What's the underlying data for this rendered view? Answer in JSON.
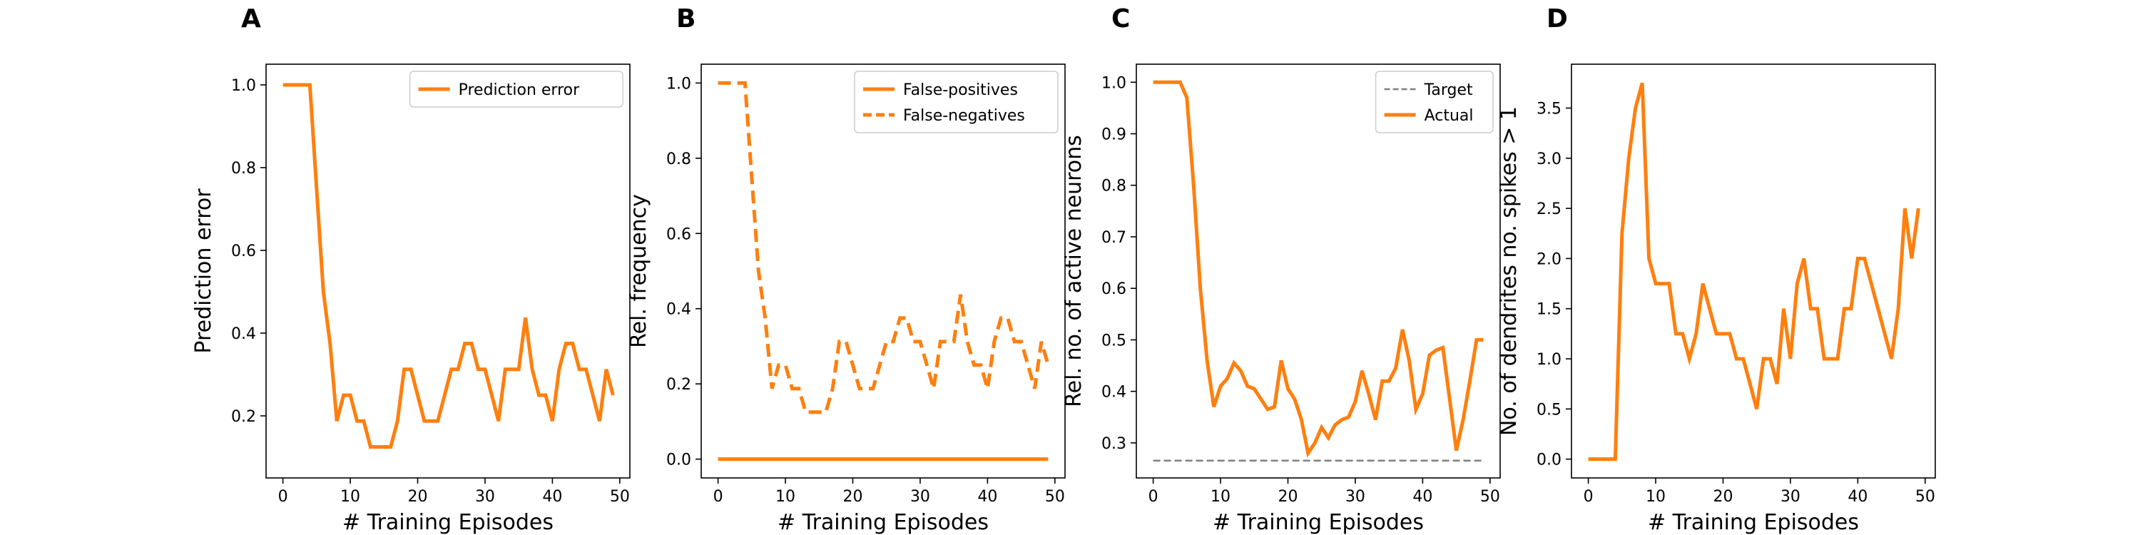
{
  "chart_data": [
    {
      "panel": "A",
      "type": "line",
      "xlabel": "# Training Episodes",
      "ylabel": "Prediction error",
      "xlim": [
        -2.5,
        51.5
      ],
      "ylim": [
        0.05,
        1.05
      ],
      "xticks": [
        0,
        10,
        20,
        30,
        40,
        50
      ],
      "yticks": [
        0.2,
        0.4,
        0.6,
        0.8,
        1.0
      ],
      "ytick_decimals": 1,
      "legend_position": "top-right",
      "series": [
        {
          "name": "Prediction error",
          "style": "solid",
          "color": "#ff7f0e",
          "x": [
            0,
            1,
            2,
            3,
            4,
            5,
            6,
            7,
            8,
            9,
            10,
            11,
            12,
            13,
            14,
            15,
            16,
            17,
            18,
            19,
            20,
            21,
            22,
            23,
            24,
            25,
            26,
            27,
            28,
            29,
            30,
            31,
            32,
            33,
            34,
            35,
            36,
            37,
            38,
            39,
            40,
            41,
            42,
            43,
            44,
            45,
            46,
            47,
            48,
            49
          ],
          "y": [
            1.0,
            1.0,
            1.0,
            1.0,
            1.0,
            0.75,
            0.5,
            0.375,
            0.1875,
            0.25,
            0.25,
            0.1875,
            0.1875,
            0.125,
            0.125,
            0.125,
            0.125,
            0.1875,
            0.3125,
            0.3125,
            0.25,
            0.1875,
            0.1875,
            0.1875,
            0.25,
            0.3125,
            0.3125,
            0.375,
            0.375,
            0.3125,
            0.3125,
            0.25,
            0.1875,
            0.3125,
            0.3125,
            0.3125,
            0.4375,
            0.3125,
            0.25,
            0.25,
            0.1875,
            0.3125,
            0.375,
            0.375,
            0.3125,
            0.3125,
            0.25,
            0.1875,
            0.3125,
            0.25
          ]
        }
      ]
    },
    {
      "panel": "B",
      "type": "line",
      "xlabel": "# Training Episodes",
      "ylabel": "Rel. frequency",
      "xlim": [
        -2.5,
        51.5
      ],
      "ylim": [
        -0.05,
        1.05
      ],
      "xticks": [
        0,
        10,
        20,
        30,
        40,
        50
      ],
      "yticks": [
        0.0,
        0.2,
        0.4,
        0.6,
        0.8,
        1.0
      ],
      "ytick_decimals": 1,
      "legend_position": "top-right",
      "series": [
        {
          "name": "False-positives",
          "style": "solid",
          "color": "#ff7f0e",
          "x": [
            0,
            1,
            2,
            3,
            4,
            5,
            6,
            7,
            8,
            9,
            10,
            11,
            12,
            13,
            14,
            15,
            16,
            17,
            18,
            19,
            20,
            21,
            22,
            23,
            24,
            25,
            26,
            27,
            28,
            29,
            30,
            31,
            32,
            33,
            34,
            35,
            36,
            37,
            38,
            39,
            40,
            41,
            42,
            43,
            44,
            45,
            46,
            47,
            48,
            49
          ],
          "y": [
            0,
            0,
            0,
            0,
            0,
            0,
            0,
            0,
            0,
            0,
            0,
            0,
            0,
            0,
            0,
            0,
            0,
            0,
            0,
            0,
            0,
            0,
            0,
            0,
            0,
            0,
            0,
            0,
            0,
            0,
            0,
            0,
            0,
            0,
            0,
            0,
            0,
            0,
            0,
            0,
            0,
            0,
            0,
            0,
            0,
            0,
            0,
            0,
            0,
            0
          ]
        },
        {
          "name": "False-negatives",
          "style": "dashed",
          "color": "#ff7f0e",
          "x": [
            0,
            1,
            2,
            3,
            4,
            5,
            6,
            7,
            8,
            9,
            10,
            11,
            12,
            13,
            14,
            15,
            16,
            17,
            18,
            19,
            20,
            21,
            22,
            23,
            24,
            25,
            26,
            27,
            28,
            29,
            30,
            31,
            32,
            33,
            34,
            35,
            36,
            37,
            38,
            39,
            40,
            41,
            42,
            43,
            44,
            45,
            46,
            47,
            48,
            49
          ],
          "y": [
            1.0,
            1.0,
            1.0,
            1.0,
            1.0,
            0.75,
            0.5,
            0.375,
            0.1875,
            0.25,
            0.25,
            0.1875,
            0.1875,
            0.125,
            0.125,
            0.125,
            0.125,
            0.1875,
            0.3125,
            0.3125,
            0.25,
            0.1875,
            0.1875,
            0.1875,
            0.25,
            0.3125,
            0.3125,
            0.375,
            0.375,
            0.3125,
            0.3125,
            0.25,
            0.1875,
            0.3125,
            0.3125,
            0.3125,
            0.4375,
            0.3125,
            0.25,
            0.25,
            0.1875,
            0.3125,
            0.375,
            0.375,
            0.3125,
            0.3125,
            0.25,
            0.1875,
            0.3125,
            0.25
          ]
        }
      ]
    },
    {
      "panel": "C",
      "type": "line",
      "xlabel": "# Training Episodes",
      "ylabel": "Rel. no. of active neurons",
      "xlim": [
        -2.5,
        51.5
      ],
      "ylim": [
        0.232,
        1.035
      ],
      "xticks": [
        0,
        10,
        20,
        30,
        40,
        50
      ],
      "yticks": [
        0.3,
        0.4,
        0.5,
        0.6,
        0.7,
        0.8,
        0.9,
        1.0
      ],
      "ytick_decimals": 1,
      "legend_position": "top-right",
      "series": [
        {
          "name": "Target",
          "style": "dashed-thin",
          "color": "#808080",
          "x": [
            0,
            49
          ],
          "y": [
            0.2656,
            0.2656
          ]
        },
        {
          "name": "Actual",
          "style": "solid",
          "color": "#ff7f0e",
          "x": [
            0,
            1,
            2,
            3,
            4,
            5,
            6,
            7,
            8,
            9,
            10,
            11,
            12,
            13,
            14,
            15,
            16,
            17,
            18,
            19,
            20,
            21,
            22,
            23,
            24,
            25,
            26,
            27,
            28,
            29,
            30,
            31,
            32,
            33,
            34,
            35,
            36,
            37,
            38,
            39,
            40,
            41,
            42,
            43,
            44,
            45,
            46,
            47,
            48,
            49
          ],
          "y": [
            1.0,
            1.0,
            1.0,
            1.0,
            1.0,
            0.97,
            0.8,
            0.6,
            0.46,
            0.37,
            0.41,
            0.425,
            0.455,
            0.44,
            0.41,
            0.405,
            0.385,
            0.365,
            0.37,
            0.46,
            0.405,
            0.385,
            0.345,
            0.28,
            0.3,
            0.33,
            0.31,
            0.335,
            0.345,
            0.35,
            0.38,
            0.44,
            0.395,
            0.345,
            0.42,
            0.42,
            0.445,
            0.52,
            0.46,
            0.365,
            0.395,
            0.47,
            0.48,
            0.485,
            0.385,
            0.285,
            0.345,
            0.42,
            0.5,
            0.5
          ]
        }
      ]
    },
    {
      "panel": "D",
      "type": "line",
      "xlabel": "# Training Episodes",
      "ylabel": "No. of dendrites no. spikes > 1",
      "xlim": [
        -2.5,
        51.5
      ],
      "ylim": [
        -0.1875,
        3.9375
      ],
      "xticks": [
        0,
        10,
        20,
        30,
        40,
        50
      ],
      "yticks": [
        0.0,
        0.5,
        1.0,
        1.5,
        2.0,
        2.5,
        3.0,
        3.5
      ],
      "ytick_decimals": 1,
      "legend_position": "none",
      "series": [
        {
          "name": "",
          "style": "solid",
          "color": "#ff7f0e",
          "x": [
            0,
            1,
            2,
            3,
            4,
            5,
            6,
            7,
            8,
            9,
            10,
            11,
            12,
            13,
            14,
            15,
            16,
            17,
            18,
            19,
            20,
            21,
            22,
            23,
            24,
            25,
            26,
            27,
            28,
            29,
            30,
            31,
            32,
            33,
            34,
            35,
            36,
            37,
            38,
            39,
            40,
            41,
            42,
            43,
            44,
            45,
            46,
            47,
            48,
            49
          ],
          "y": [
            0,
            0,
            0,
            0,
            0,
            2.25,
            3.0,
            3.5,
            3.75,
            2.0,
            1.75,
            1.75,
            1.75,
            1.25,
            1.25,
            1.0,
            1.25,
            1.75,
            1.5,
            1.25,
            1.25,
            1.25,
            1.0,
            1.0,
            0.75,
            0.5,
            1.0,
            1.0,
            0.75,
            1.5,
            1.0,
            1.75,
            2.0,
            1.5,
            1.5,
            1.0,
            1.0,
            1.0,
            1.5,
            1.5,
            2.0,
            2.0,
            1.75,
            1.5,
            1.25,
            1.0,
            1.5,
            2.5,
            2.0,
            2.5
          ]
        }
      ]
    }
  ]
}
